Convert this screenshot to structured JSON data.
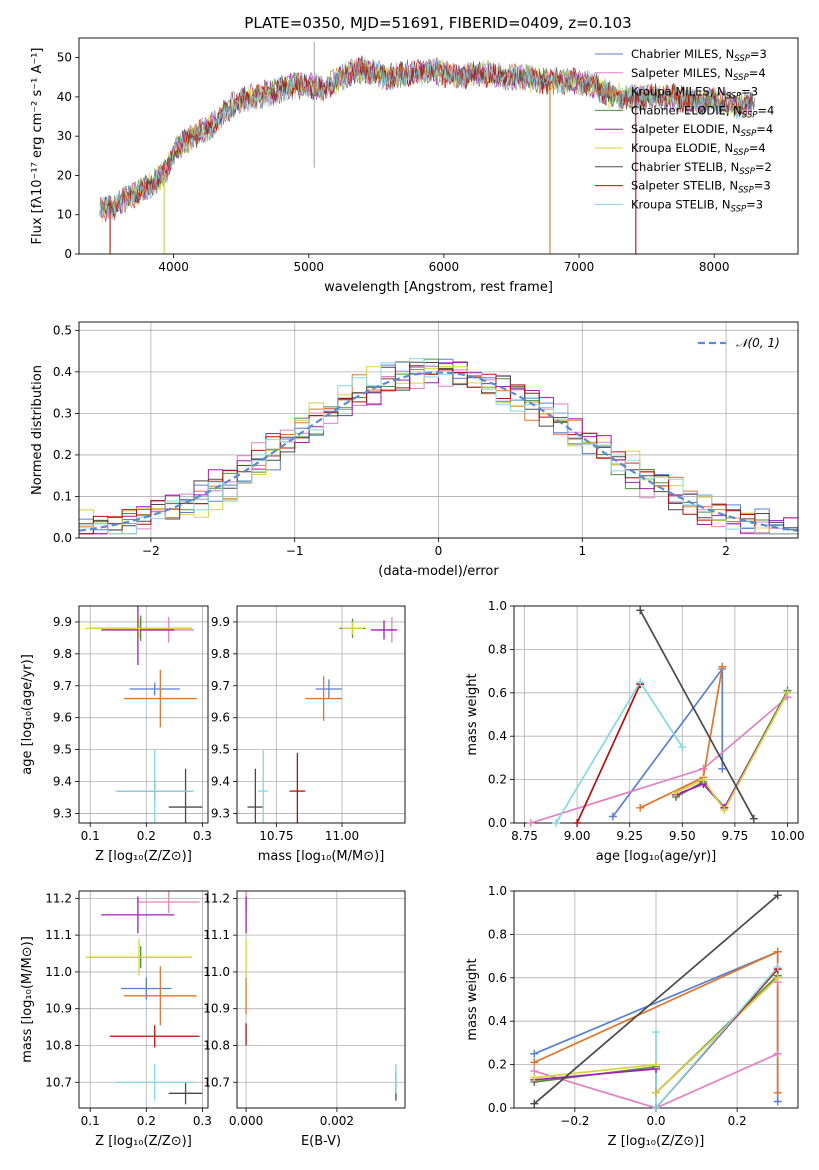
{
  "colors": {
    "chabrier_miles": "#5b7fd1",
    "salpeter_miles": "#e381c0",
    "kroupa_miles": "#e0752a",
    "chabrier_elodie": "#4e8f3c",
    "salpeter_elodie": "#a51cb5",
    "kroupa_elodie": "#d8d240",
    "chabrier_stelib": "#4a4a4a",
    "salpeter_stelib": "#b51010",
    "kroupa_stelib": "#86d7e2",
    "gauss": "#5b8bd6"
  },
  "chart_data": [
    {
      "id": "spectrum",
      "type": "line",
      "title": "PLATE=0350, MJD=51691, FIBERID=0409, z=0.103",
      "xlabel": "wavelength [Angstrom, rest frame]",
      "ylabel": "Flux [fλ10⁻¹⁷ erg cm⁻² s⁻¹ A⁻¹]",
      "xlim": [
        3300,
        8620
      ],
      "ylim": [
        0,
        55
      ],
      "xticks": [
        "4000",
        "5000",
        "6000",
        "7000",
        "8000"
      ],
      "xtick_values": [
        4000,
        5000,
        6000,
        7000,
        8000
      ],
      "yticks": [
        "0",
        "10",
        "20",
        "30",
        "40",
        "50"
      ],
      "ytick_values": [
        0,
        10,
        20,
        30,
        40,
        50
      ],
      "grid": false,
      "legend_position": "top-right",
      "legend": [
        {
          "text": "Chabrier MILES, N",
          "sub": "SSP",
          "tail": "=3",
          "color_key": "chabrier_miles"
        },
        {
          "text": "Salpeter MILES, N",
          "sub": "SSP",
          "tail": "=4",
          "color_key": "salpeter_miles"
        },
        {
          "text": "Kroupa MILES, N",
          "sub": "SSP",
          "tail": "=3",
          "color_key": "kroupa_miles"
        },
        {
          "text": "Chabrier ELODIE, N",
          "sub": "SSP",
          "tail": "=4",
          "color_key": "chabrier_elodie"
        },
        {
          "text": "Salpeter ELODIE, N",
          "sub": "SSP",
          "tail": "=4",
          "color_key": "salpeter_elodie"
        },
        {
          "text": "Kroupa ELODIE, N",
          "sub": "SSP",
          "tail": "=4",
          "color_key": "kroupa_elodie"
        },
        {
          "text": "Chabrier STELIB, N",
          "sub": "SSP",
          "tail": "=2",
          "color_key": "chabrier_stelib"
        },
        {
          "text": "Salpeter STELIB, N",
          "sub": "SSP",
          "tail": "=3",
          "color_key": "salpeter_stelib"
        },
        {
          "text": "Kroupa STELIB, N",
          "sub": "SSP",
          "tail": "=3",
          "color_key": "kroupa_stelib"
        }
      ],
      "x": [
        3450,
        3550,
        3650,
        3750,
        3850,
        3950,
        4000,
        4100,
        4200,
        4300,
        4400,
        4500,
        4600,
        4700,
        4800,
        4900,
        5000,
        5100,
        5200,
        5300,
        5400,
        5500,
        5600,
        5700,
        5800,
        5900,
        6000,
        6100,
        6200,
        6300,
        6400,
        6500,
        6600,
        6700,
        6800,
        6900,
        7000,
        7100,
        7200,
        7300,
        7400,
        7500,
        7600,
        7700,
        7800,
        7900,
        8000,
        8100,
        8200,
        8300
      ],
      "y": [
        11,
        12,
        14,
        16,
        18,
        21,
        26,
        29,
        31,
        33,
        37,
        39,
        40,
        41,
        42,
        43,
        43,
        42,
        44,
        46,
        47,
        46,
        45,
        46,
        46,
        47,
        46,
        45,
        46,
        46,
        45,
        45,
        45,
        44,
        44,
        44,
        44,
        43,
        41,
        40,
        40,
        40,
        40,
        40,
        39,
        39,
        39,
        38,
        38,
        38
      ],
      "dips": [
        {
          "x": 3530,
          "y_bottom": 0,
          "color_key": "salpeter_stelib"
        },
        {
          "x": 3930,
          "y_bottom": 0,
          "color_key": "kroupa_elodie"
        },
        {
          "x": 6785,
          "y_bottom": 0,
          "color_key": "kroupa_miles"
        },
        {
          "x": 7420,
          "y_bottom": 0,
          "color_key": "salpeter_stelib"
        }
      ]
    },
    {
      "id": "residuals",
      "type": "bar",
      "xlabel": "(data-model)/error",
      "ylabel": "Normed distribution",
      "xlim": [
        -2.5,
        2.5
      ],
      "ylim": [
        0,
        0.52
      ],
      "xticks": [
        "−2",
        "−1",
        "0",
        "1",
        "2"
      ],
      "xtick_values": [
        -2,
        -1,
        0,
        1,
        2
      ],
      "yticks": [
        "0.0",
        "0.1",
        "0.2",
        "0.3",
        "0.4",
        "0.5"
      ],
      "ytick_values": [
        0,
        0.1,
        0.2,
        0.3,
        0.4,
        0.5
      ],
      "grid": true,
      "legend_position": "top-right",
      "legend_label": "𝒩(0, 1)",
      "bin_width": 0.1,
      "series_offsets": [
        0.012,
        -0.015,
        0.02,
        -0.01,
        0.015,
        -0.02,
        0.008,
        -0.006,
        0.018
      ]
    },
    {
      "id": "age_vs_z",
      "type": "scatter",
      "xlabel": "Z [log₁₀(Z/Z⊙)]",
      "ylabel": "age  [log₁₀(age/yr)]",
      "xlim": [
        0.08,
        0.31
      ],
      "ylim": [
        9.27,
        9.95
      ],
      "xticks": [
        "0.1",
        "0.2",
        "0.3"
      ],
      "xtick_values": [
        0.1,
        0.2,
        0.3
      ],
      "yticks": [
        "9.3",
        "9.4",
        "9.5",
        "9.6",
        "9.7",
        "9.8",
        "9.9"
      ],
      "ytick_values": [
        9.3,
        9.4,
        9.5,
        9.6,
        9.7,
        9.8,
        9.9
      ],
      "grid": true,
      "points": [
        {
          "x": 0.215,
          "y": 9.69,
          "xerr": 0.045,
          "yerr": 0.02,
          "color_key": "chabrier_miles"
        },
        {
          "x": 0.24,
          "y": 9.875,
          "xerr": 0.045,
          "yerr": 0.04,
          "color_key": "salpeter_miles"
        },
        {
          "x": 0.225,
          "y": 9.66,
          "xerr": 0.065,
          "yerr": 0.09,
          "color_key": "kroupa_miles"
        },
        {
          "x": 0.19,
          "y": 9.88,
          "xerr": 0.09,
          "yerr": 0.04,
          "color_key": "chabrier_elodie"
        },
        {
          "x": 0.185,
          "y": 9.875,
          "xerr": 0.065,
          "yerr": 0.11,
          "color_key": "salpeter_elodie"
        },
        {
          "x": 0.187,
          "y": 9.88,
          "xerr": 0.095,
          "yerr": 0.03,
          "color_key": "kroupa_elodie"
        },
        {
          "x": 0.27,
          "y": 9.32,
          "xerr": 0.03,
          "yerr": 0.12,
          "color_key": "chabrier_stelib"
        },
        {
          "x": 0.215,
          "y": 9.37,
          "xerr": 0.065,
          "yerr": 0.03,
          "color_key": "salpeter_stelib"
        },
        {
          "x": 0.215,
          "y": 9.37,
          "xerr": 0.07,
          "yerr": 0.13,
          "color_key": "kroupa_stelib"
        }
      ]
    },
    {
      "id": "age_vs_mass",
      "type": "scatter",
      "xlabel": "mass [log₁₀(M/M⊙)]",
      "ylabel": "",
      "xlim": [
        10.6,
        11.24
      ],
      "ylim": [
        9.27,
        9.95
      ],
      "xticks": [
        "10.75",
        "11.00"
      ],
      "xtick_values": [
        10.75,
        11.0
      ],
      "yticks": [
        "9.3",
        "9.4",
        "9.5",
        "9.6",
        "9.7",
        "9.8",
        "9.9"
      ],
      "ytick_values": [
        9.3,
        9.4,
        9.5,
        9.6,
        9.7,
        9.8,
        9.9
      ],
      "grid": true,
      "points": [
        {
          "x": 10.95,
          "y": 9.69,
          "xerr": 0.05,
          "yerr": 0.03,
          "color_key": "chabrier_miles"
        },
        {
          "x": 11.19,
          "y": 9.875,
          "xerr": 0.01,
          "yerr": 0.04,
          "color_key": "salpeter_miles"
        },
        {
          "x": 10.93,
          "y": 9.66,
          "xerr": 0.07,
          "yerr": 0.07,
          "color_key": "kroupa_miles"
        },
        {
          "x": 11.04,
          "y": 9.88,
          "xerr": 0.05,
          "yerr": 0.03,
          "color_key": "chabrier_elodie"
        },
        {
          "x": 11.16,
          "y": 9.875,
          "xerr": 0.05,
          "yerr": 0.03,
          "color_key": "salpeter_elodie"
        },
        {
          "x": 11.04,
          "y": 9.88,
          "xerr": 0.04,
          "yerr": 0.02,
          "color_key": "kroupa_elodie"
        },
        {
          "x": 10.67,
          "y": 9.32,
          "xerr": 0.03,
          "yerr": 0.12,
          "color_key": "chabrier_stelib"
        },
        {
          "x": 10.83,
          "y": 9.37,
          "xerr": 0.03,
          "yerr": 0.12,
          "color_key": "salpeter_stelib"
        },
        {
          "x": 10.7,
          "y": 9.37,
          "xerr": 0.02,
          "yerr": 0.13,
          "color_key": "kroupa_stelib"
        }
      ]
    },
    {
      "id": "weight_vs_age",
      "type": "line",
      "xlabel": "age  [log₁₀(age/yr)]",
      "ylabel": "mass weight",
      "xlim": [
        8.7,
        10.05
      ],
      "ylim": [
        0,
        1.0
      ],
      "xticks": [
        "8.75",
        "9.00",
        "9.25",
        "9.50",
        "9.75",
        "10.00"
      ],
      "xtick_values": [
        8.75,
        9.0,
        9.25,
        9.5,
        9.75,
        10.0
      ],
      "yticks": [
        "0.0",
        "0.2",
        "0.4",
        "0.6",
        "0.8",
        "1.0"
      ],
      "ytick_values": [
        0,
        0.2,
        0.4,
        0.6,
        0.8,
        1.0
      ],
      "grid": true,
      "series": [
        {
          "color_key": "chabrier_miles",
          "x": [
            9.17,
            9.69,
            9.69
          ],
          "y": [
            0.03,
            0.71,
            0.25
          ]
        },
        {
          "color_key": "salpeter_miles",
          "x": [
            8.78,
            9.6,
            10.0
          ],
          "y": [
            0.0,
            0.25,
            0.58
          ]
        },
        {
          "color_key": "kroupa_miles",
          "x": [
            9.3,
            9.6,
            9.69
          ],
          "y": [
            0.07,
            0.21,
            0.72
          ]
        },
        {
          "color_key": "chabrier_elodie",
          "x": [
            9.47,
            9.6,
            9.7,
            10.0
          ],
          "y": [
            0.12,
            0.19,
            0.07,
            0.61
          ]
        },
        {
          "color_key": "salpeter_elodie",
          "x": [
            9.47,
            9.6,
            9.7,
            10.0
          ],
          "y": [
            0.13,
            0.18,
            0.07,
            0.6
          ]
        },
        {
          "color_key": "kroupa_elodie",
          "x": [
            9.47,
            9.6,
            9.7,
            10.0
          ],
          "y": [
            0.14,
            0.2,
            0.06,
            0.6
          ]
        },
        {
          "color_key": "chabrier_stelib",
          "x": [
            9.3,
            9.84
          ],
          "y": [
            0.98,
            0.02
          ]
        },
        {
          "color_key": "salpeter_stelib",
          "x": [
            9.0,
            9.3
          ],
          "y": [
            0.0,
            0.64
          ]
        },
        {
          "color_key": "kroupa_stelib",
          "x": [
            8.9,
            9.3,
            9.5
          ],
          "y": [
            0.0,
            0.65,
            0.35
          ]
        }
      ]
    },
    {
      "id": "mass_vs_z",
      "type": "scatter",
      "xlabel": "Z [log₁₀(Z/Z⊙)]",
      "ylabel": "mass [log₁₀(M/M⊙)]",
      "xlim": [
        0.08,
        0.31
      ],
      "ylim": [
        10.63,
        11.22
      ],
      "xticks": [
        "0.1",
        "0.2",
        "0.3"
      ],
      "xtick_values": [
        0.1,
        0.2,
        0.3
      ],
      "yticks": [
        "10.7",
        "10.8",
        "10.9",
        "11.0",
        "11.1",
        "11.2"
      ],
      "ytick_values": [
        10.7,
        10.8,
        10.9,
        11.0,
        11.1,
        11.2
      ],
      "grid": true,
      "points": [
        {
          "x": 0.2,
          "y": 10.955,
          "xerr": 0.045,
          "yerr": 0.03,
          "color_key": "chabrier_miles"
        },
        {
          "x": 0.24,
          "y": 11.19,
          "xerr": 0.055,
          "yerr": 0.03,
          "color_key": "salpeter_miles"
        },
        {
          "x": 0.225,
          "y": 10.935,
          "xerr": 0.065,
          "yerr": 0.08,
          "color_key": "kroupa_miles"
        },
        {
          "x": 0.19,
          "y": 11.04,
          "xerr": 0.09,
          "yerr": 0.03,
          "color_key": "chabrier_elodie"
        },
        {
          "x": 0.185,
          "y": 11.155,
          "xerr": 0.065,
          "yerr": 0.05,
          "color_key": "salpeter_elodie"
        },
        {
          "x": 0.187,
          "y": 11.04,
          "xerr": 0.095,
          "yerr": 0.05,
          "color_key": "kroupa_elodie"
        },
        {
          "x": 0.27,
          "y": 10.67,
          "xerr": 0.03,
          "yerr": 0.03,
          "color_key": "chabrier_stelib"
        },
        {
          "x": 0.215,
          "y": 10.825,
          "xerr": 0.08,
          "yerr": 0.03,
          "color_key": "salpeter_stelib"
        },
        {
          "x": 0.215,
          "y": 10.7,
          "xerr": 0.07,
          "yerr": 0.05,
          "color_key": "kroupa_stelib"
        }
      ]
    },
    {
      "id": "mass_vs_ebv",
      "type": "scatter",
      "xlabel": "E(B-V)",
      "ylabel": "",
      "xlim": [
        -0.0002,
        0.0035
      ],
      "ylim": [
        10.63,
        11.22
      ],
      "xticks": [
        "0.000",
        "0.002"
      ],
      "xtick_values": [
        0.0,
        0.002
      ],
      "yticks": [
        "10.7",
        "10.8",
        "10.9",
        "11.0",
        "11.1",
        "11.2"
      ],
      "ytick_values": [
        10.7,
        10.8,
        10.9,
        11.0,
        11.1,
        11.2
      ],
      "grid": true,
      "points": [
        {
          "x": 0.0,
          "y": 11.19,
          "xerr": 0.0,
          "yerr": 0.03,
          "color_key": "salpeter_miles"
        },
        {
          "x": 0.0,
          "y": 11.155,
          "xerr": 0.0,
          "yerr": 0.05,
          "color_key": "salpeter_elodie"
        },
        {
          "x": 0.0,
          "y": 11.04,
          "xerr": 0.0,
          "yerr": 0.05,
          "color_key": "kroupa_elodie"
        },
        {
          "x": 0.0,
          "y": 10.935,
          "xerr": 0.0,
          "yerr": 0.05,
          "color_key": "kroupa_miles"
        },
        {
          "x": 0.0,
          "y": 10.83,
          "xerr": 0.0,
          "yerr": 0.03,
          "color_key": "salpeter_stelib"
        },
        {
          "x": 0.0033,
          "y": 10.69,
          "xerr": 0.0,
          "yerr": 0.04,
          "color_key": "chabrier_stelib"
        },
        {
          "x": 0.0033,
          "y": 10.71,
          "xerr": 0.0,
          "yerr": 0.04,
          "color_key": "kroupa_stelib"
        }
      ]
    },
    {
      "id": "weight_vs_z",
      "type": "line",
      "xlabel": "Z [log₁₀(Z/Z⊙)]",
      "ylabel": "mass weight",
      "xlim": [
        -0.35,
        0.35
      ],
      "ylim": [
        0,
        1.0
      ],
      "xticks": [
        "−0.2",
        "0.0",
        "0.2"
      ],
      "xtick_values": [
        -0.2,
        0.0,
        0.2
      ],
      "yticks": [
        "0.0",
        "0.2",
        "0.4",
        "0.6",
        "0.8",
        "1.0"
      ],
      "ytick_values": [
        0,
        0.2,
        0.4,
        0.6,
        0.8,
        1.0
      ],
      "grid": true,
      "series": [
        {
          "color_key": "chabrier_miles",
          "x": [
            -0.3,
            0.3,
            0.3
          ],
          "y": [
            0.25,
            0.72,
            0.03
          ]
        },
        {
          "color_key": "salpeter_miles",
          "x": [
            -0.3,
            0.0,
            0.3,
            0.3
          ],
          "y": [
            0.17,
            0.0,
            0.25,
            0.58
          ]
        },
        {
          "color_key": "kroupa_miles",
          "x": [
            -0.3,
            0.3,
            0.3
          ],
          "y": [
            0.21,
            0.72,
            0.07
          ]
        },
        {
          "color_key": "chabrier_elodie",
          "x": [
            -0.3,
            0.0,
            0.0,
            0.3
          ],
          "y": [
            0.12,
            0.19,
            0.07,
            0.61
          ]
        },
        {
          "color_key": "salpeter_elodie",
          "x": [
            -0.3,
            0.0,
            0.0,
            0.3
          ],
          "y": [
            0.13,
            0.18,
            0.07,
            0.6
          ]
        },
        {
          "color_key": "kroupa_elodie",
          "x": [
            -0.3,
            0.0,
            0.0,
            0.3
          ],
          "y": [
            0.14,
            0.2,
            0.07,
            0.6
          ]
        },
        {
          "color_key": "chabrier_stelib",
          "x": [
            -0.3,
            0.3
          ],
          "y": [
            0.02,
            0.98
          ]
        },
        {
          "color_key": "salpeter_stelib",
          "x": [
            0.0,
            0.3
          ],
          "y": [
            0.0,
            0.64
          ]
        },
        {
          "color_key": "kroupa_stelib",
          "x": [
            0.0,
            0.0,
            0.3
          ],
          "y": [
            0.35,
            0.0,
            0.65
          ]
        }
      ]
    }
  ]
}
